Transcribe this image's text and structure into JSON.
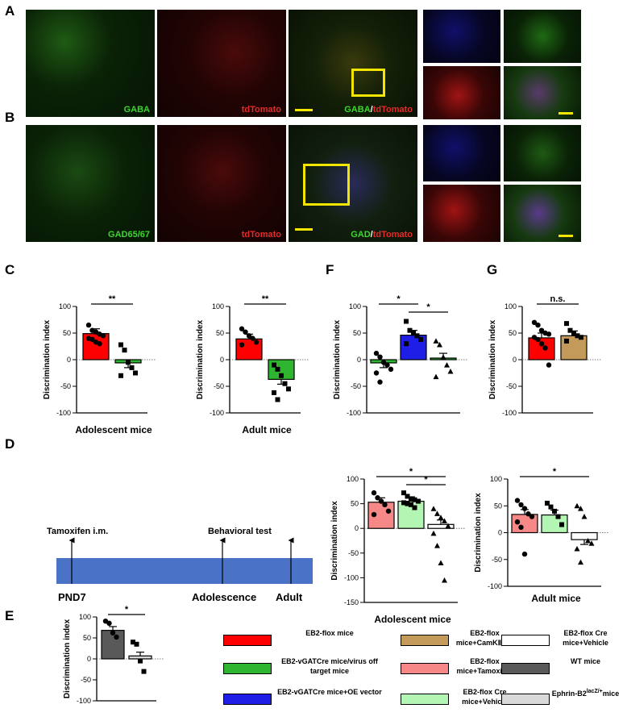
{
  "panel_letters": {
    "A": "A",
    "B": "B",
    "C": "C",
    "D": "D",
    "E": "E",
    "F": "F",
    "G": "G"
  },
  "micrographs": {
    "row_a": {
      "label_1": "GABA",
      "label_2": "tdTomato",
      "label_3a": "GABA",
      "label_3b": "/",
      "label_3c": "tdTomato"
    },
    "row_b": {
      "label_1": "GAD65/67",
      "label_2": "tdTomato",
      "label_3a": "GAD",
      "label_3b": "/",
      "label_3c": "tdTomato"
    },
    "colors": {
      "green": "#3cb82e",
      "red": "#d42020",
      "blue": "#2b3be0",
      "scale": "#f2e600"
    }
  },
  "timeline": {
    "start_label": "Tamoxifen i.m.",
    "test_label": "Behavioral test",
    "pnd_label": "PND7",
    "adolescence_label": "Adolescence",
    "adult_label": "Adult",
    "bar_color": "#4a72c6"
  },
  "legend": [
    {
      "label": "EB2-flox mice",
      "color": "#ff0000"
    },
    {
      "label": "EB2-flox mice+CamKⅡCre",
      "color": "#c49a5a"
    },
    {
      "label": "EB2-flox Cre mice+Vehicle",
      "color": "#ffffff"
    },
    {
      "label": "EB2-vGATCre mice/virus off target mice",
      "color": "#2fb52f"
    },
    {
      "label": "EB2-flox mice+Tamoxifen",
      "color": "#f78888"
    },
    {
      "label": "WT mice",
      "color": "#595959"
    },
    {
      "label": "EB2-vGATCre mice+OE vector",
      "color": "#1e1ee6"
    },
    {
      "label": "EB2-flox Cre mice+Vehicle",
      "color": "#b3f5b3"
    },
    {
      "label": "Ephrin-B2",
      "label_sup": "lacZ/+",
      "label_end": "mice",
      "color": "#d9d9d9"
    }
  ],
  "chart_data": [
    {
      "id": "C1",
      "type": "bar",
      "ylabel": "Discrimination index",
      "xlabel": "Adolescent mice",
      "ylim": [
        -100,
        100
      ],
      "yticks": [
        100,
        50,
        0,
        -50,
        -100
      ],
      "series": [
        {
          "values": [
            49
          ],
          "color": "#ff0000"
        },
        {
          "values": [
            -6
          ],
          "color": "#2fb52f"
        }
      ],
      "points": [
        [
          65,
          55,
          52,
          48,
          45,
          40,
          38,
          33,
          30
        ],
        [
          28,
          18,
          -5,
          -15,
          -25,
          -30
        ]
      ],
      "significance": [
        {
          "label": "**",
          "from": 0,
          "to": 1
        }
      ]
    },
    {
      "id": "C2",
      "type": "bar",
      "ylabel": "Discrimination index",
      "xlabel": "Adult mice",
      "ylim": [
        -100,
        100
      ],
      "yticks": [
        100,
        50,
        0,
        -50,
        -100
      ],
      "series": [
        {
          "values": [
            39
          ],
          "color": "#ff0000"
        },
        {
          "values": [
            -37
          ],
          "color": "#2fb52f"
        }
      ],
      "points": [
        [
          58,
          52,
          45,
          40,
          33,
          28
        ],
        [
          -10,
          -18,
          -30,
          -45,
          -55,
          -62,
          -75
        ]
      ],
      "significance": [
        {
          "label": "**",
          "from": 0,
          "to": 1
        }
      ]
    },
    {
      "id": "F",
      "type": "bar",
      "ylabel": "Discrimination index",
      "xlabel": "",
      "ylim": [
        -100,
        100
      ],
      "yticks": [
        100,
        50,
        0,
        -50,
        -100
      ],
      "series": [
        {
          "values": [
            -6
          ],
          "color": "#2fb52f"
        },
        {
          "values": [
            46
          ],
          "color": "#1e1ee6"
        },
        {
          "values": [
            3
          ],
          "color": "#2fb52f"
        }
      ],
      "points": [
        [
          12,
          5,
          -5,
          -10,
          -18,
          -25,
          -42
        ],
        [
          72,
          55,
          50,
          45,
          38,
          30
        ],
        [
          35,
          28,
          5,
          -10,
          -22,
          -32
        ]
      ],
      "significance": [
        {
          "label": "*",
          "from": 0,
          "to": 1
        },
        {
          "label": "*",
          "from": 1,
          "to": 2
        }
      ]
    },
    {
      "id": "G",
      "type": "bar",
      "ylabel": "Discrimination index",
      "xlabel": "",
      "ylim": [
        -100,
        100
      ],
      "yticks": [
        100,
        50,
        0,
        -50,
        -100
      ],
      "series": [
        {
          "values": [
            41
          ],
          "color": "#ff0000"
        },
        {
          "values": [
            45
          ],
          "color": "#c49a5a"
        }
      ],
      "points": [
        [
          70,
          65,
          55,
          50,
          48,
          42,
          38,
          30,
          22,
          -10
        ],
        [
          68,
          55,
          50,
          45,
          42,
          35
        ]
      ],
      "significance": [
        {
          "label": "n.s.",
          "from": 0,
          "to": 1
        }
      ]
    },
    {
      "id": "D1",
      "type": "bar",
      "ylabel": "Discrimination index",
      "xlabel": "Adolescent mice",
      "ylim": [
        -150,
        100
      ],
      "yticks": [
        100,
        50,
        0,
        -50,
        -100,
        -150
      ],
      "series": [
        {
          "values": [
            53
          ],
          "color": "#f78888"
        },
        {
          "values": [
            55
          ],
          "color": "#b3f5b3"
        },
        {
          "values": [
            8
          ],
          "color": "#ffffff"
        }
      ],
      "points": [
        [
          72,
          62,
          55,
          48,
          35,
          28
        ],
        [
          72,
          65,
          60,
          58,
          55,
          52,
          50,
          48,
          42
        ],
        [
          40,
          30,
          22,
          15,
          5,
          -10,
          -35,
          -70,
          -105
        ]
      ],
      "significance": [
        {
          "label": "*",
          "from": 0,
          "to": 2
        },
        {
          "label": "*",
          "from": 1,
          "to": 2
        }
      ]
    },
    {
      "id": "D2",
      "type": "bar",
      "ylabel": "Discrimination index",
      "xlabel": "Adult mice",
      "ylim": [
        -100,
        100
      ],
      "yticks": [
        100,
        50,
        0,
        -50,
        -100
      ],
      "series": [
        {
          "values": [
            34
          ],
          "color": "#f78888"
        },
        {
          "values": [
            33
          ],
          "color": "#b3f5b3"
        },
        {
          "values": [
            -13
          ],
          "color": "#ffffff"
        }
      ],
      "points": [
        [
          60,
          52,
          45,
          35,
          30,
          20,
          10,
          -40
        ],
        [
          55,
          48,
          40,
          30,
          15
        ],
        [
          50,
          45,
          30,
          -15,
          -20,
          -30,
          -55
        ]
      ],
      "significance": [
        {
          "label": "*",
          "from": 0,
          "to": 2
        }
      ]
    },
    {
      "id": "E",
      "type": "bar",
      "ylabel": "Discrimination index",
      "xlabel": "",
      "ylim": [
        -100,
        100
      ],
      "yticks": [
        100,
        50,
        0,
        -50,
        -100
      ],
      "series": [
        {
          "values": [
            68
          ],
          "color": "#595959"
        },
        {
          "values": [
            7
          ],
          "color": "#d9d9d9"
        }
      ],
      "points": [
        [
          90,
          85,
          62,
          52
        ],
        [
          40,
          35,
          -5,
          -30
        ]
      ],
      "significance": [
        {
          "label": "*",
          "from": 0,
          "to": 1
        }
      ]
    }
  ]
}
